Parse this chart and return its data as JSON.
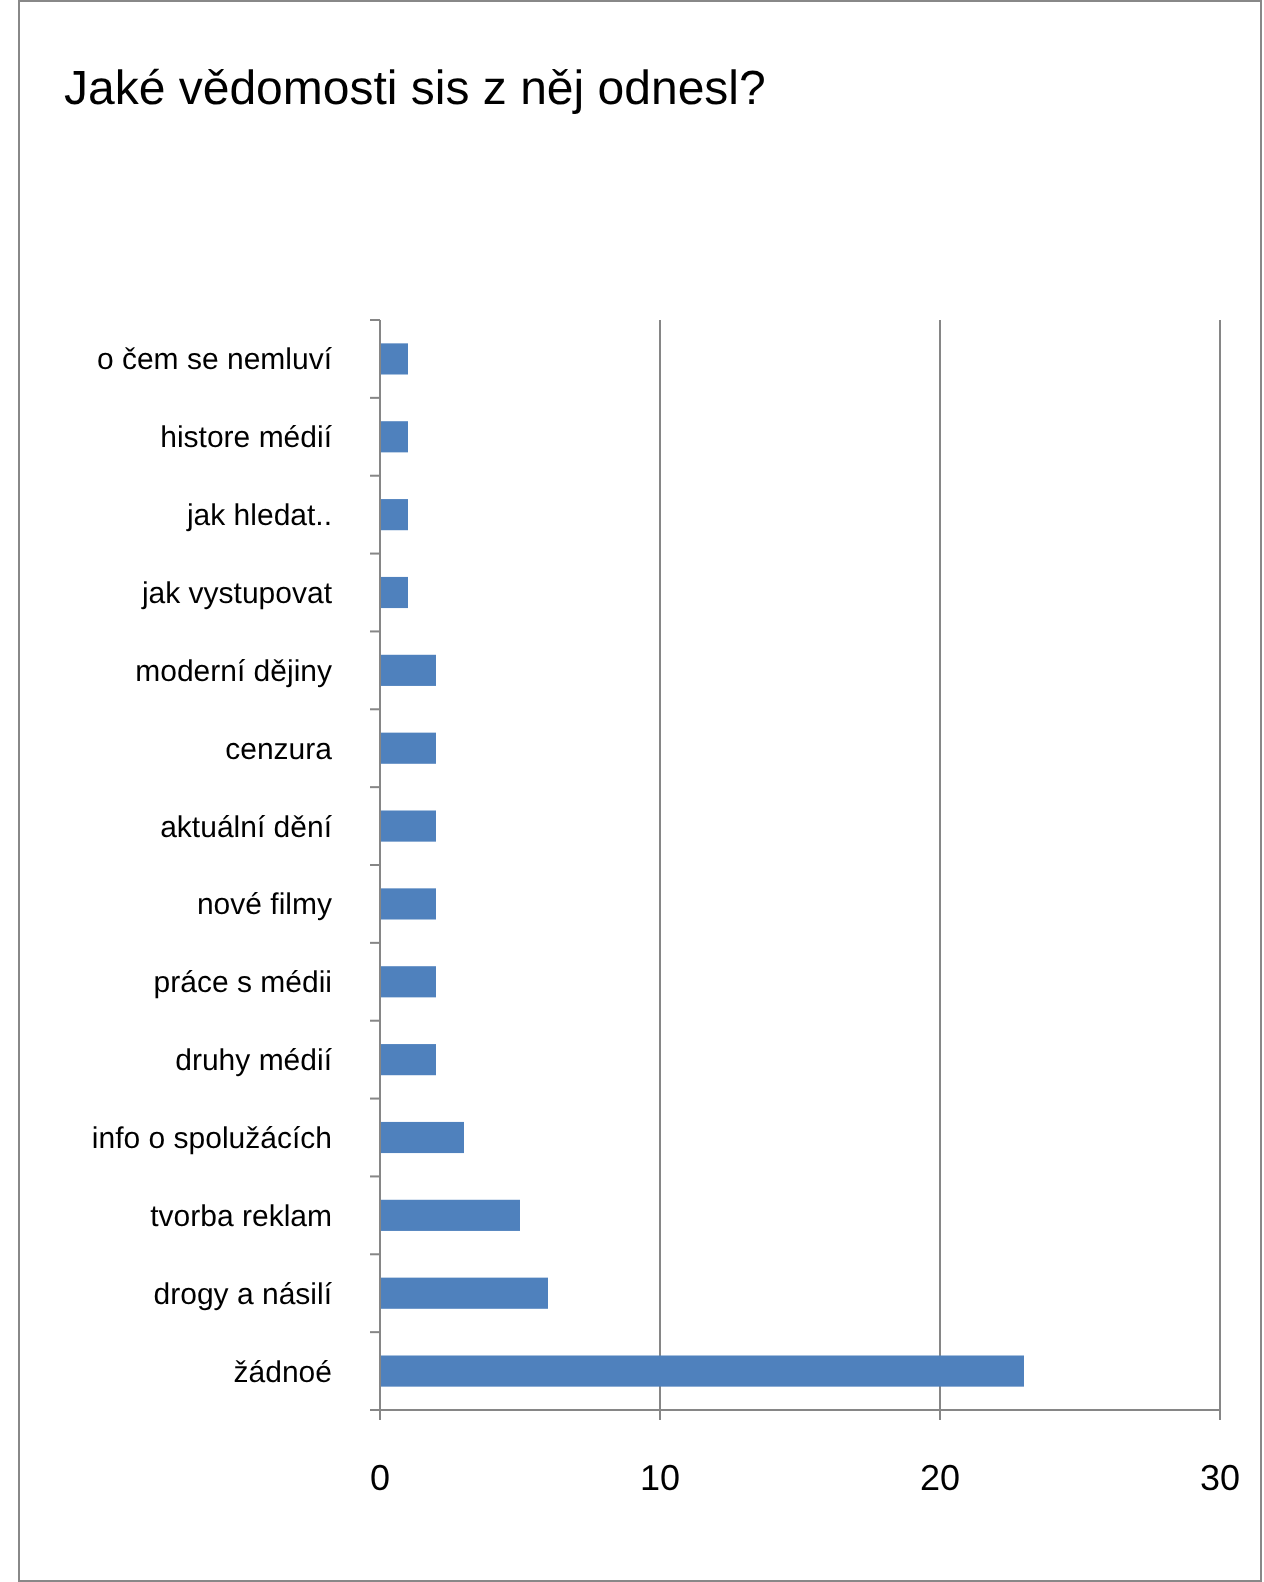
{
  "chart_data": {
    "type": "bar",
    "orientation": "horizontal",
    "title": "Jaké vědomosti sis z něj odnesl?",
    "categories": [
      "o čem se nemluví",
      "histore médií",
      "jak hledat..",
      "jak vystupovat",
      "moderní dějiny",
      "cenzura",
      "aktuální dění",
      "nové filmy",
      "práce s médii",
      "druhy médií",
      "info o spolužácích",
      "tvorba reklam",
      "drogy a násilí",
      "žádnoé"
    ],
    "values": [
      1,
      1,
      1,
      1,
      2,
      2,
      2,
      2,
      2,
      2,
      3,
      5,
      6,
      23
    ],
    "color": "#4f81bd",
    "xlim": [
      0,
      30
    ],
    "xticks": [
      0,
      10,
      20,
      30
    ],
    "grid": "x"
  }
}
